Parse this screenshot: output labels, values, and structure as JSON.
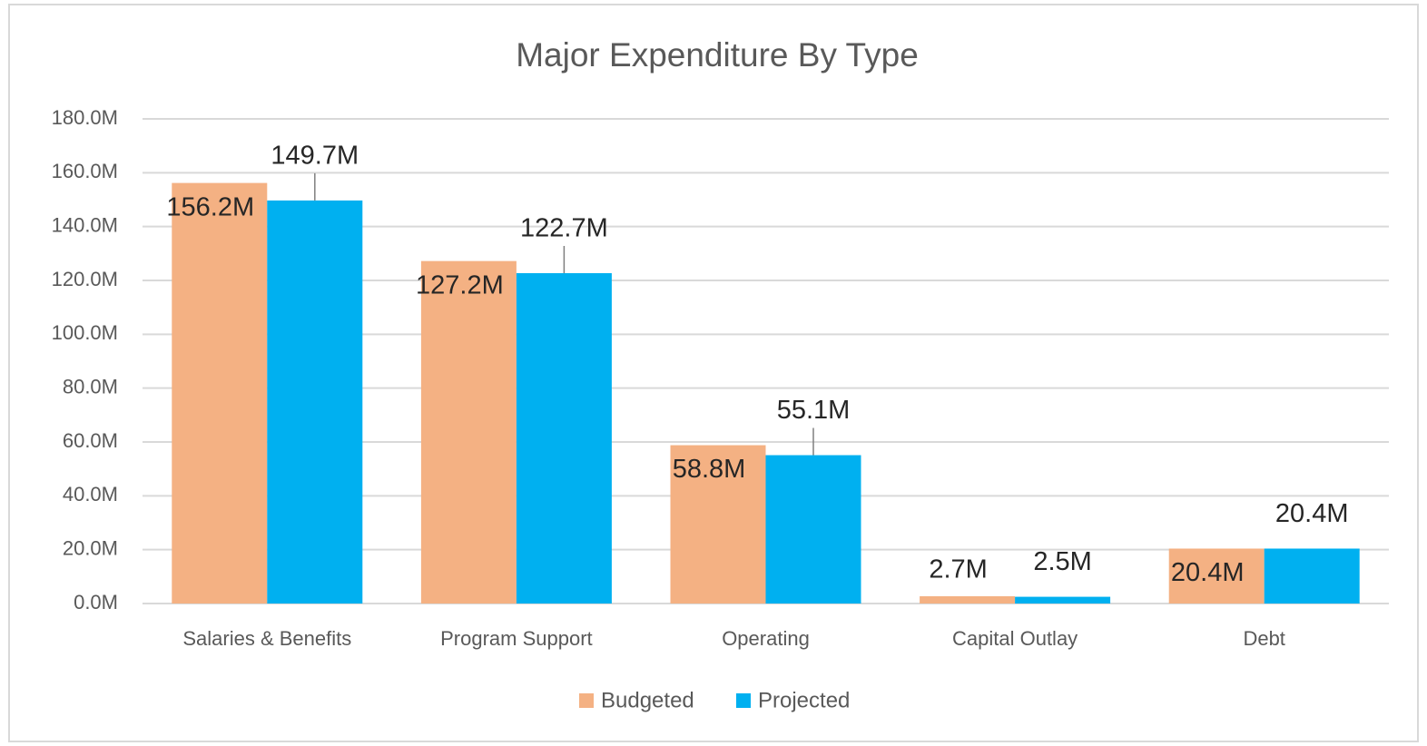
{
  "chart_data": {
    "type": "bar",
    "title": "Major Expenditure By Type",
    "categories": [
      "Salaries & Benefits",
      "Program Support",
      "Operating",
      "Capital Outlay",
      "Debt"
    ],
    "series": [
      {
        "name": "Budgeted",
        "color": "#F4B183",
        "values": [
          156.2,
          127.2,
          58.8,
          2.7,
          20.4
        ],
        "value_labels": [
          "156.2M",
          "127.2M",
          "58.8M",
          "2.7M",
          "20.4M"
        ]
      },
      {
        "name": "Projected",
        "color": "#00B0F0",
        "values": [
          149.7,
          122.7,
          55.1,
          2.5,
          20.4
        ],
        "value_labels": [
          "149.7M",
          "122.7M",
          "55.1M",
          "2.5M",
          "20.4M"
        ]
      }
    ],
    "ylim": [
      0,
      180
    ],
    "yticks": [
      {
        "value": 0,
        "label": "0.0M"
      },
      {
        "value": 20,
        "label": "20.0M"
      },
      {
        "value": 40,
        "label": "40.0M"
      },
      {
        "value": 60,
        "label": "60.0M"
      },
      {
        "value": 80,
        "label": "80.0M"
      },
      {
        "value": 100,
        "label": "100.0M"
      },
      {
        "value": 120,
        "label": "120.0M"
      },
      {
        "value": 140,
        "label": "140.0M"
      },
      {
        "value": 160,
        "label": "160.0M"
      },
      {
        "value": 180,
        "label": "180.0M"
      }
    ],
    "grid": true,
    "legend": "bottom"
  }
}
